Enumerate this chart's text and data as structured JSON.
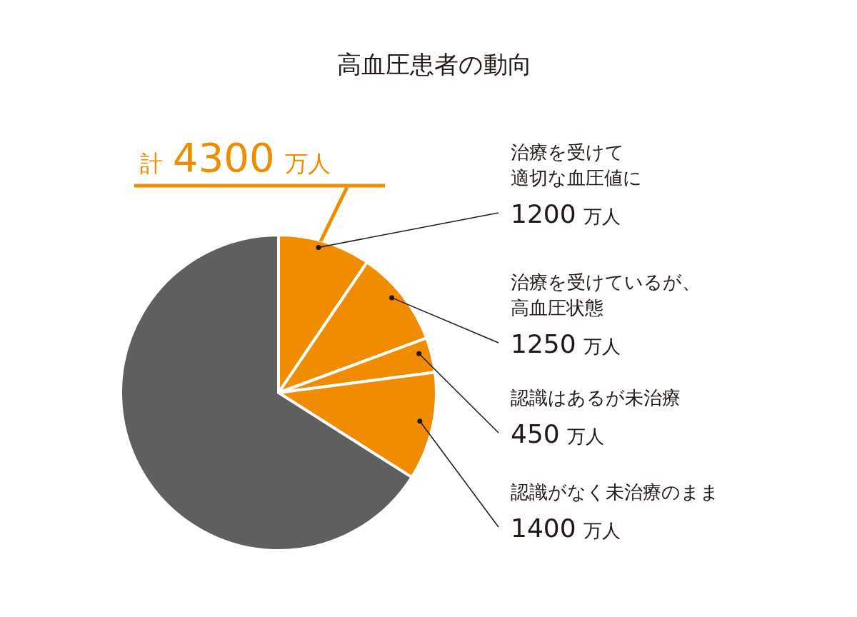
{
  "chart_data": {
    "type": "pie",
    "title": "高血圧患者の動向",
    "categories": [
      "治療を受けて適切な血圧値に",
      "治療を受けているが、高血圧状態",
      "認識はあるが未治療",
      "認識がなく未治療のまま",
      null
    ],
    "values": [
      1200,
      1250,
      450,
      1400,
      8350
    ],
    "value_labels": [
      "1200 万人",
      "1250 万人",
      "450 万人",
      "1400 万人",
      null
    ],
    "colors": [
      "#f08c00",
      "#f08c00",
      "#f08c00",
      "#f08c00",
      "#5f5f5f"
    ],
    "annotations": [
      "計 4300 万人"
    ]
  }
}
